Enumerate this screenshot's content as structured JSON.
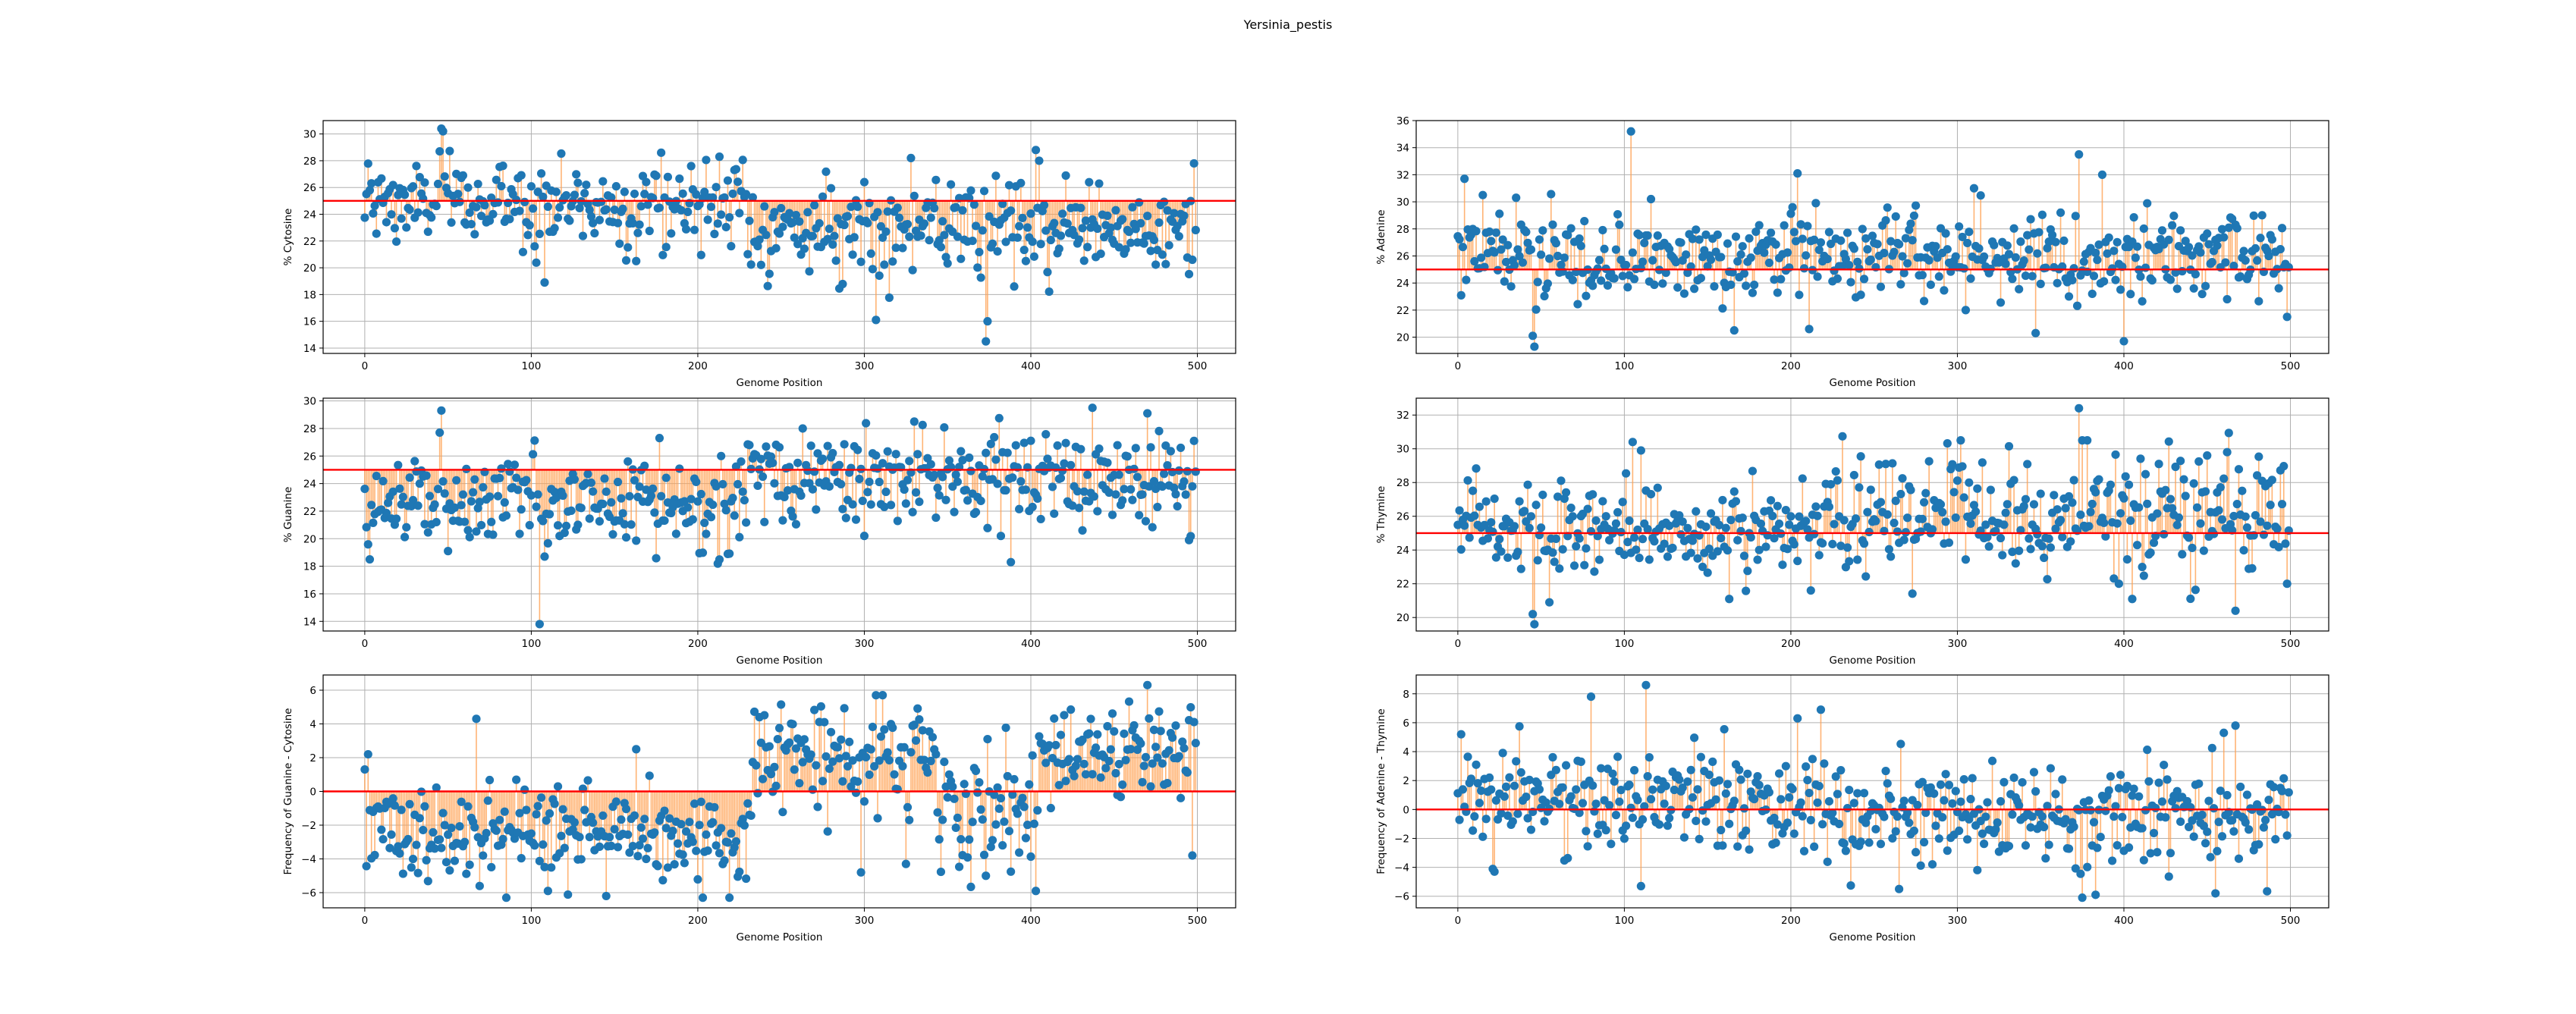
{
  "figure": {
    "title": "Yersinia_pestis"
  },
  "chart_data": [
    {
      "type": "scatter",
      "id": "cytosine",
      "xlabel": "Genome Position",
      "ylabel": "% Cytosine",
      "xlim": [
        -25,
        523
      ],
      "ylim": [
        13.6,
        31.0
      ],
      "xticks": [
        0,
        100,
        200,
        300,
        400,
        500
      ],
      "yticks": [
        14,
        16,
        18,
        20,
        22,
        24,
        26,
        28,
        30
      ],
      "grid": true,
      "baseline": 25,
      "n_points": 500,
      "x_start": 0,
      "segments": [
        {
          "from": 0,
          "to": 230,
          "mean": 24.8,
          "sd": 1.6
        },
        {
          "from": 230,
          "to": 500,
          "mean": 22.8,
          "sd": 1.6
        }
      ],
      "highlights": [
        {
          "x": 46,
          "y": 30.4
        },
        {
          "x": 47,
          "y": 30.2
        },
        {
          "x": 45,
          "y": 28.7
        },
        {
          "x": 108,
          "y": 18.9
        },
        {
          "x": 163,
          "y": 20.5
        },
        {
          "x": 178,
          "y": 28.6
        },
        {
          "x": 213,
          "y": 28.3
        },
        {
          "x": 300,
          "y": 26.4
        },
        {
          "x": 305,
          "y": 19.9
        },
        {
          "x": 307,
          "y": 16.1
        },
        {
          "x": 328,
          "y": 28.2
        },
        {
          "x": 373,
          "y": 14.5
        },
        {
          "x": 374,
          "y": 16.0
        },
        {
          "x": 390,
          "y": 18.6
        },
        {
          "x": 403,
          "y": 28.8
        },
        {
          "x": 405,
          "y": 28.0
        },
        {
          "x": 498,
          "y": 27.8
        },
        {
          "x": 497,
          "y": 20.6
        }
      ]
    },
    {
      "type": "scatter",
      "id": "adenine",
      "xlabel": "Genome Position",
      "ylabel": "% Adenine",
      "xlim": [
        -25,
        523
      ],
      "ylim": [
        18.8,
        36.0
      ],
      "xticks": [
        0,
        100,
        200,
        300,
        400,
        500
      ],
      "yticks": [
        20,
        22,
        24,
        26,
        28,
        30,
        32,
        34,
        36
      ],
      "grid": true,
      "baseline": 25,
      "n_points": 500,
      "x_start": 0,
      "segments": [
        {
          "from": 0,
          "to": 500,
          "mean": 25.9,
          "sd": 1.5
        }
      ],
      "highlights": [
        {
          "x": 4,
          "y": 31.7
        },
        {
          "x": 15,
          "y": 30.5
        },
        {
          "x": 35,
          "y": 30.3
        },
        {
          "x": 45,
          "y": 20.1
        },
        {
          "x": 46,
          "y": 19.3
        },
        {
          "x": 104,
          "y": 35.2
        },
        {
          "x": 116,
          "y": 30.2
        },
        {
          "x": 166,
          "y": 20.5
        },
        {
          "x": 204,
          "y": 32.1
        },
        {
          "x": 211,
          "y": 20.6
        },
        {
          "x": 215,
          "y": 29.9
        },
        {
          "x": 305,
          "y": 22.0
        },
        {
          "x": 310,
          "y": 31.0
        },
        {
          "x": 347,
          "y": 20.3
        },
        {
          "x": 373,
          "y": 33.5
        },
        {
          "x": 387,
          "y": 32.0
        },
        {
          "x": 400,
          "y": 19.7
        },
        {
          "x": 498,
          "y": 21.5
        }
      ]
    },
    {
      "type": "scatter",
      "id": "guanine",
      "xlabel": "Genome Position",
      "ylabel": "% Guanine",
      "xlim": [
        -25,
        523
      ],
      "ylim": [
        13.3,
        30.2
      ],
      "xticks": [
        0,
        100,
        200,
        300,
        400,
        500
      ],
      "yticks": [
        14,
        16,
        18,
        20,
        22,
        24,
        26,
        28,
        30
      ],
      "grid": true,
      "baseline": 25,
      "n_points": 500,
      "x_start": 0,
      "segments": [
        {
          "from": 0,
          "to": 230,
          "mean": 22.4,
          "sd": 1.6
        },
        {
          "from": 230,
          "to": 500,
          "mean": 24.3,
          "sd": 1.8
        }
      ],
      "highlights": [
        {
          "x": 3,
          "y": 18.5
        },
        {
          "x": 45,
          "y": 27.7
        },
        {
          "x": 46,
          "y": 29.3
        },
        {
          "x": 50,
          "y": 19.1
        },
        {
          "x": 105,
          "y": 13.8
        },
        {
          "x": 108,
          "y": 18.7
        },
        {
          "x": 214,
          "y": 26.0
        },
        {
          "x": 263,
          "y": 28.0
        },
        {
          "x": 300,
          "y": 20.2
        },
        {
          "x": 330,
          "y": 28.5
        },
        {
          "x": 388,
          "y": 18.3
        },
        {
          "x": 437,
          "y": 29.5
        },
        {
          "x": 470,
          "y": 29.1
        },
        {
          "x": 495,
          "y": 19.9
        },
        {
          "x": 498,
          "y": 27.1
        }
      ]
    },
    {
      "type": "scatter",
      "id": "thymine",
      "xlabel": "Genome Position",
      "ylabel": "% Thymine",
      "xlim": [
        -25,
        523
      ],
      "ylim": [
        19.2,
        33.0
      ],
      "xticks": [
        0,
        100,
        200,
        300,
        400,
        500
      ],
      "yticks": [
        20,
        22,
        24,
        26,
        28,
        30,
        32
      ],
      "grid": true,
      "baseline": 25,
      "n_points": 500,
      "x_start": 0,
      "segments": [
        {
          "from": 0,
          "to": 220,
          "mean": 25.2,
          "sd": 1.4
        },
        {
          "from": 220,
          "to": 500,
          "mean": 26.1,
          "sd": 1.6
        }
      ],
      "highlights": [
        {
          "x": 45,
          "y": 20.2
        },
        {
          "x": 46,
          "y": 19.6
        },
        {
          "x": 55,
          "y": 20.9
        },
        {
          "x": 105,
          "y": 30.4
        },
        {
          "x": 110,
          "y": 29.9
        },
        {
          "x": 163,
          "y": 21.1
        },
        {
          "x": 302,
          "y": 30.5
        },
        {
          "x": 373,
          "y": 32.4
        },
        {
          "x": 375,
          "y": 30.5
        },
        {
          "x": 378,
          "y": 30.5
        },
        {
          "x": 397,
          "y": 22.0
        },
        {
          "x": 405,
          "y": 21.1
        },
        {
          "x": 450,
          "y": 29.6
        },
        {
          "x": 462,
          "y": 29.8
        },
        {
          "x": 467,
          "y": 20.4
        },
        {
          "x": 498,
          "y": 22.0
        }
      ]
    },
    {
      "type": "scatter",
      "id": "gc-skew",
      "xlabel": "Genome Position",
      "ylabel": "Frequency of Guanine - Cytosine",
      "xlim": [
        -25,
        523
      ],
      "ylim": [
        -6.9,
        6.9
      ],
      "xticks": [
        0,
        100,
        200,
        300,
        400,
        500
      ],
      "yticks": [
        -6,
        -4,
        -2,
        0,
        2,
        4,
        6
      ],
      "grid": true,
      "baseline": 0,
      "n_points": 500,
      "x_start": 0,
      "segments": [
        {
          "from": 0,
          "to": 232,
          "mean": -2.4,
          "sd": 1.5
        },
        {
          "from": 232,
          "to": 345,
          "mean": 2.2,
          "sd": 1.6
        },
        {
          "from": 345,
          "to": 405,
          "mean": -1.5,
          "sd": 2.2
        },
        {
          "from": 405,
          "to": 500,
          "mean": 2.6,
          "sd": 1.5
        }
      ],
      "highlights": [
        {
          "x": 0,
          "y": 1.3
        },
        {
          "x": 2,
          "y": 2.2
        },
        {
          "x": 67,
          "y": 4.3
        },
        {
          "x": 110,
          "y": -5.9
        },
        {
          "x": 145,
          "y": -6.2
        },
        {
          "x": 163,
          "y": 2.5
        },
        {
          "x": 219,
          "y": -6.3
        },
        {
          "x": 237,
          "y": 4.4
        },
        {
          "x": 307,
          "y": 5.7
        },
        {
          "x": 298,
          "y": -4.8
        },
        {
          "x": 325,
          "y": -4.3
        },
        {
          "x": 373,
          "y": -5.0
        },
        {
          "x": 403,
          "y": -5.9
        },
        {
          "x": 470,
          "y": 6.3
        },
        {
          "x": 497,
          "y": -3.8
        }
      ]
    },
    {
      "type": "scatter",
      "id": "at-skew",
      "xlabel": "Genome Position",
      "ylabel": "Frequency of Adenine - Thymine",
      "xlim": [
        -25,
        523
      ],
      "ylim": [
        -6.8,
        9.3
      ],
      "xticks": [
        0,
        100,
        200,
        300,
        400,
        500
      ],
      "yticks": [
        -6,
        -4,
        -2,
        0,
        2,
        4,
        6,
        8
      ],
      "grid": true,
      "baseline": 0,
      "n_points": 500,
      "x_start": 0,
      "segments": [
        {
          "from": 0,
          "to": 230,
          "mean": 0.6,
          "sd": 1.7
        },
        {
          "from": 230,
          "to": 500,
          "mean": -0.3,
          "sd": 1.8
        }
      ],
      "highlights": [
        {
          "x": 2,
          "y": 5.2
        },
        {
          "x": 22,
          "y": -4.3
        },
        {
          "x": 80,
          "y": 7.8
        },
        {
          "x": 113,
          "y": 8.6
        },
        {
          "x": 110,
          "y": -5.3
        },
        {
          "x": 204,
          "y": 6.3
        },
        {
          "x": 218,
          "y": 6.9
        },
        {
          "x": 265,
          "y": -5.5
        },
        {
          "x": 375,
          "y": -6.1
        },
        {
          "x": 383,
          "y": -5.9
        },
        {
          "x": 460,
          "y": 5.3
        },
        {
          "x": 467,
          "y": 5.8
        },
        {
          "x": 455,
          "y": -5.8
        }
      ]
    }
  ]
}
